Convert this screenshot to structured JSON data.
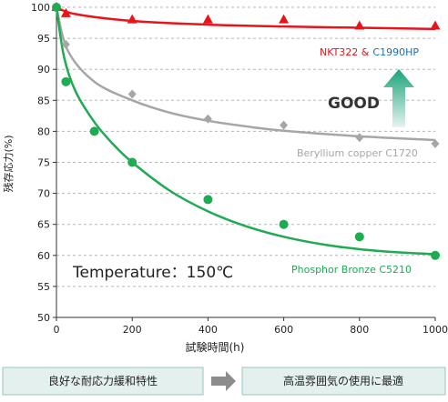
{
  "chart_data": {
    "type": "scatter",
    "xlabel": "試験時間(h)",
    "ylabel": "残存応力(%)",
    "xlim": [
      0,
      1000
    ],
    "ylim": [
      50,
      100
    ],
    "x_ticks": [
      0,
      200,
      400,
      600,
      800,
      1000
    ],
    "y_ticks": [
      50,
      55,
      60,
      65,
      70,
      75,
      80,
      85,
      90,
      95,
      100
    ],
    "grid": "horizontal dashed",
    "series": [
      {
        "name_part1": "NKT322 &",
        "name_part2": "C1990HP",
        "color": "#e8141a",
        "color_part2": "#1a70b8",
        "marker": "triangle",
        "points": [
          [
            0,
            100
          ],
          [
            25,
            99
          ],
          [
            200,
            98
          ],
          [
            400,
            98
          ],
          [
            600,
            98
          ],
          [
            800,
            97
          ],
          [
            1000,
            97
          ]
        ],
        "fit": [
          [
            0,
            100
          ],
          [
            50,
            98.9
          ],
          [
            200,
            97.8
          ],
          [
            400,
            97.2
          ],
          [
            600,
            96.9
          ],
          [
            800,
            96.7
          ],
          [
            1000,
            96.5
          ]
        ]
      },
      {
        "name": "Beryllium copper C1720",
        "color": "#a6a6a6",
        "marker": "diamond",
        "points": [
          [
            0,
            100
          ],
          [
            25,
            94
          ],
          [
            200,
            86
          ],
          [
            400,
            82
          ],
          [
            600,
            81
          ],
          [
            800,
            79
          ],
          [
            1000,
            78
          ]
        ],
        "fit": [
          [
            0,
            100
          ],
          [
            30,
            93
          ],
          [
            100,
            88
          ],
          [
            200,
            85
          ],
          [
            300,
            83
          ],
          [
            400,
            81.7
          ],
          [
            500,
            80.8
          ],
          [
            600,
            80.1
          ],
          [
            800,
            79.2
          ],
          [
            1000,
            78.6
          ]
        ]
      },
      {
        "name": "Phosphor Bronze C5210",
        "color": "#1eab52",
        "marker": "circle",
        "points": [
          [
            0,
            100
          ],
          [
            25,
            88
          ],
          [
            100,
            80
          ],
          [
            200,
            75
          ],
          [
            400,
            69
          ],
          [
            600,
            65
          ],
          [
            800,
            63
          ],
          [
            1000,
            60
          ]
        ],
        "fit": [
          [
            0,
            100
          ],
          [
            20,
            92
          ],
          [
            50,
            86.5
          ],
          [
            100,
            81.5
          ],
          [
            150,
            77.9
          ],
          [
            200,
            75
          ],
          [
            300,
            70.4
          ],
          [
            400,
            67.1
          ],
          [
            500,
            64.7
          ],
          [
            600,
            63
          ],
          [
            700,
            61.8
          ],
          [
            800,
            61
          ],
          [
            900,
            60.5
          ],
          [
            1000,
            60.2
          ]
        ]
      }
    ],
    "annotations": {
      "good": "GOOD",
      "temperature": "Temperature：150℃"
    }
  },
  "footer": {
    "left_box": "良好な耐応力緩和特性",
    "right_box": "高温雰囲気の使用に最適"
  },
  "colors": {
    "arrow_top": "#1aa37a",
    "arrow_bottom": "#e6f3f0",
    "box_fill": "#e3f0ee",
    "box_border": "#9bc6c0",
    "connector": "#8c8c8c",
    "grid": "#b5b5b5"
  }
}
